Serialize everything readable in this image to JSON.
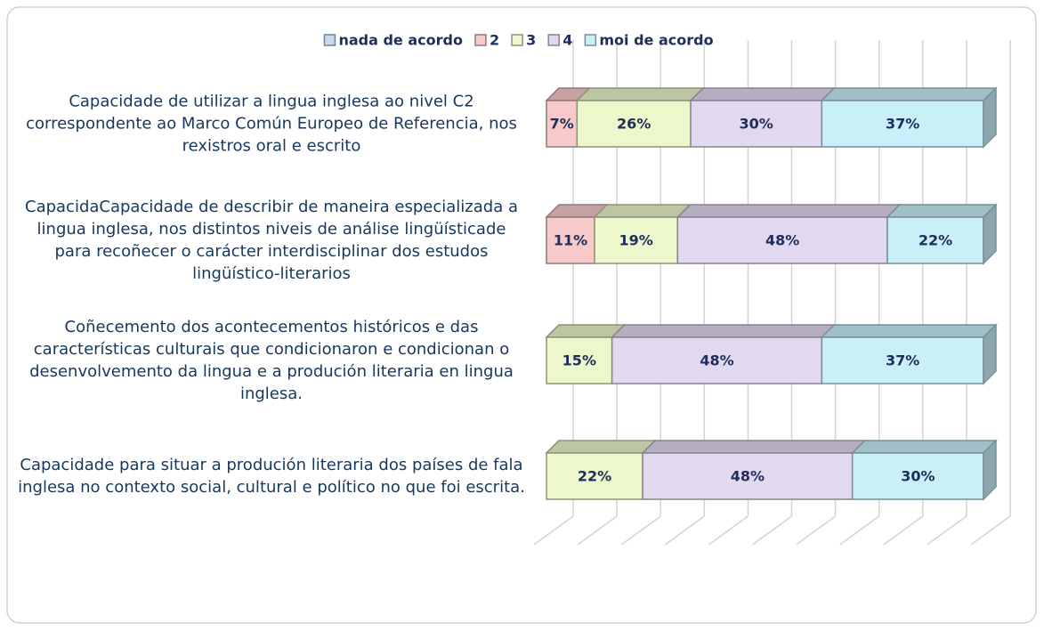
{
  "chart_data": {
    "type": "bar",
    "orientation": "horizontal",
    "stacked": true,
    "categories": [
      "Capacidade de utilizar a lingua inglesa ao nivel C2 correspondente ao Marco Común Europeo de Referencia, nos rexistros oral e escrito",
      "CapacidaCapacidade de describir de maneira especializada a lingua inglesa, nos distintos niveis de análise lingüísticade para recoñecer o carácter interdisciplinar dos estudos lingüístico-literarios",
      "Coñecemento dos acontecementos históricos e das características culturais que condicionaron e condicionan o desenvolvemento da lingua e a produción literaria en lingua inglesa.",
      "Capacidade para situar a produción literaria dos países de fala inglesa no contexto social, cultural e político no que foi escrita."
    ],
    "series": [
      {
        "name": "nada de acordo",
        "color": "#c6d9f1",
        "values": [
          0,
          0,
          0,
          0
        ],
        "value_labels": [
          null,
          null,
          null,
          null
        ]
      },
      {
        "name": "2",
        "color": "#f7c9c9",
        "values": [
          7,
          11,
          0,
          0
        ],
        "value_labels": [
          "7%",
          "11%",
          null,
          null
        ]
      },
      {
        "name": "3",
        "color": "#ecf7cc",
        "values": [
          26,
          19,
          15,
          22
        ],
        "value_labels": [
          "26%",
          "19%",
          "15%",
          "22%"
        ]
      },
      {
        "name": "4",
        "color": "#e2d9f1",
        "values": [
          30,
          48,
          48,
          48
        ],
        "value_labels": [
          "30%",
          "48%",
          "48%",
          "48%"
        ]
      },
      {
        "name": "moi de acordo",
        "color": "#c9eff9",
        "values": [
          37,
          22,
          37,
          30
        ],
        "value_labels": [
          "37%",
          "22%",
          "37%",
          "30%"
        ]
      }
    ],
    "xlim": [
      0,
      100
    ],
    "xticks": [
      0,
      10,
      20,
      30,
      40,
      50,
      60,
      70,
      80,
      90,
      100
    ],
    "grid": true,
    "legend": "top"
  }
}
